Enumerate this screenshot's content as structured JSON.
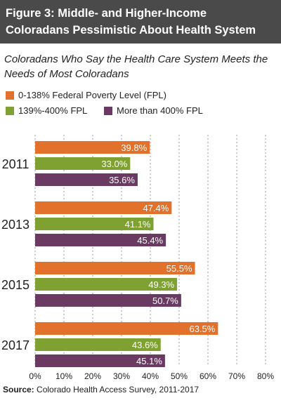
{
  "header": {
    "title_line1": "Figure 3: Middle- and Higher-Income",
    "title_line2": "Coloradans Pessimistic About Health System",
    "bg_color": "#4a4a4a"
  },
  "subtitle_line1": "Coloradans Who Say the Health Care System Meets the",
  "subtitle_line2": "Needs of Most Coloradans",
  "source_label": "Source:",
  "source_text": "Colorado Health Access Survey, 2011-2017",
  "chart_data": {
    "type": "bar",
    "orientation": "horizontal",
    "title": "Coloradans Who Say the Health Care System Meets the Needs of Most Coloradans",
    "categories": [
      "2011",
      "2013",
      "2015",
      "2017"
    ],
    "series": [
      {
        "name": "0-138% Federal Poverty Level (FPL)",
        "color": "#e2712b",
        "values": [
          39.8,
          47.4,
          55.5,
          63.5
        ],
        "labels": [
          "39.8%",
          "47.4%",
          "55.5%",
          "63.5%"
        ]
      },
      {
        "name": "139%-400% FPL",
        "color": "#7ea132",
        "values": [
          33.0,
          41.1,
          49.3,
          43.6
        ],
        "labels": [
          "33.0%",
          "41.1%",
          "49.3%",
          "43.6%"
        ]
      },
      {
        "name": "More than 400% FPL",
        "color": "#6b3a63",
        "values": [
          35.6,
          45.4,
          50.7,
          45.1
        ],
        "labels": [
          "35.6%",
          "45.4%",
          "50.7%",
          "45.1%"
        ]
      }
    ],
    "xlim": [
      0,
      80
    ],
    "xticks": [
      "0%",
      "10%",
      "20%",
      "30%",
      "40%",
      "50%",
      "60%",
      "70%",
      "80%"
    ],
    "grid": "vertical dashed",
    "legend": "top-left"
  }
}
